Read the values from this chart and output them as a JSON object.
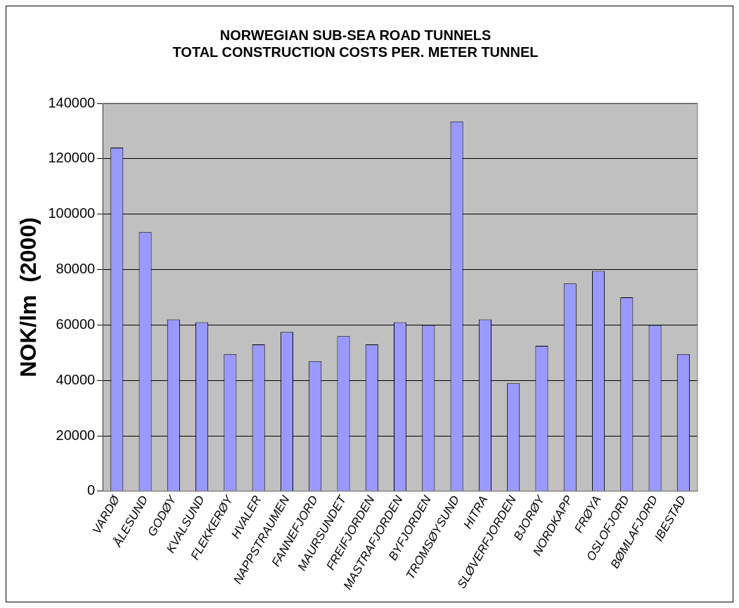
{
  "chart_data": {
    "type": "bar",
    "title": "NORWEGIAN SUB-SEA ROAD TUNNELS\nTOTAL CONSTRUCTION COSTS PER. METER TUNNEL",
    "ylabel": "NOK/lm  (2000)",
    "categories": [
      "VARDØ",
      "ÅLESUND",
      "GODØY",
      "KVALSUND",
      "FLEKKERØY",
      "HVALER",
      "NAPPSTRAUMEN",
      "FANNEFJORD",
      "MAURSUNDET",
      "FREIFJORDEN",
      "MASTRAFJORDEN",
      "BYFJORDEN",
      "TROMSØYSUND",
      "HITRA",
      "SLØVERFJORDEN",
      "BJORØY",
      "NORDKAPP",
      "FRØYA",
      "OSLOFJORD",
      "BØMLAFJORD",
      "IBESTAD"
    ],
    "values": [
      124000,
      93500,
      62000,
      61000,
      49500,
      53000,
      57500,
      47000,
      56000,
      53000,
      61000,
      60000,
      133500,
      62000,
      39000,
      52500,
      75000,
      79500,
      70000,
      60000,
      49500
    ],
    "color": "#9999ff",
    "ylim": [
      0,
      140000
    ],
    "yticks": [
      0,
      20000,
      40000,
      60000,
      80000,
      100000,
      120000,
      140000
    ],
    "grid": "y"
  }
}
